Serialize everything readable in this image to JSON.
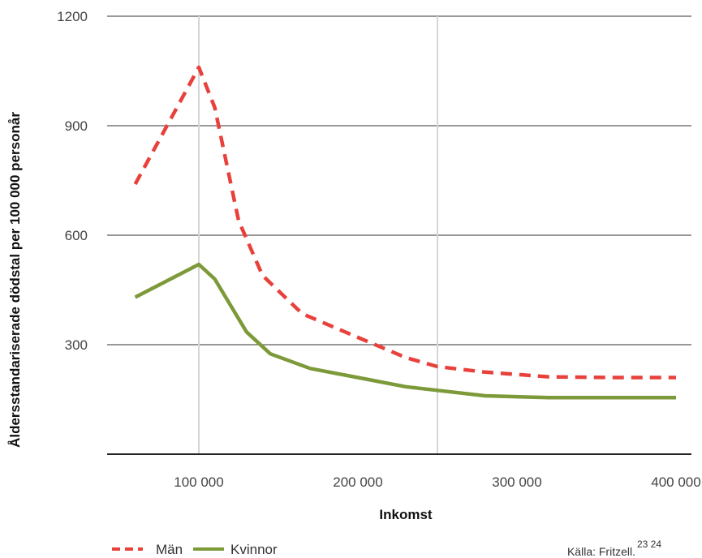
{
  "chart_data": {
    "type": "line",
    "xlabel": "Inkomst",
    "ylabel": "Åldersstandariserade dödstal per 100 000 personår",
    "ylim": [
      0,
      1200
    ],
    "xlim": [
      40000,
      400000
    ],
    "yticks": [
      300,
      600,
      900,
      1200
    ],
    "ytick_labels": [
      "300",
      "600",
      "900",
      "1200"
    ],
    "xticks": [
      100000,
      200000,
      300000,
      400000
    ],
    "xtick_labels": [
      "100 000",
      "200 000",
      "300 000",
      "400 000"
    ],
    "x_gridlines": [
      100000,
      250000
    ],
    "grid": true,
    "legend_position": "bottom-left",
    "series": [
      {
        "name": "Män",
        "color": "#e8413c",
        "style": "dashed",
        "points": [
          [
            60000,
            740
          ],
          [
            100000,
            1060
          ],
          [
            110000,
            950
          ],
          [
            125000,
            640
          ],
          [
            140000,
            490
          ],
          [
            165000,
            385
          ],
          [
            200000,
            320
          ],
          [
            230000,
            265
          ],
          [
            250000,
            240
          ],
          [
            280000,
            225
          ],
          [
            320000,
            212
          ],
          [
            360000,
            210
          ],
          [
            400000,
            210
          ]
        ]
      },
      {
        "name": "Kvinnor",
        "color": "#7d9a3a",
        "style": "solid",
        "points": [
          [
            60000,
            430
          ],
          [
            100000,
            520
          ],
          [
            110000,
            480
          ],
          [
            130000,
            335
          ],
          [
            145000,
            275
          ],
          [
            170000,
            235
          ],
          [
            200000,
            210
          ],
          [
            230000,
            185
          ],
          [
            250000,
            175
          ],
          [
            280000,
            160
          ],
          [
            320000,
            155
          ],
          [
            360000,
            155
          ],
          [
            400000,
            155
          ]
        ]
      }
    ],
    "source": "Källa: Fritzell.",
    "source_refs": "23 24"
  }
}
